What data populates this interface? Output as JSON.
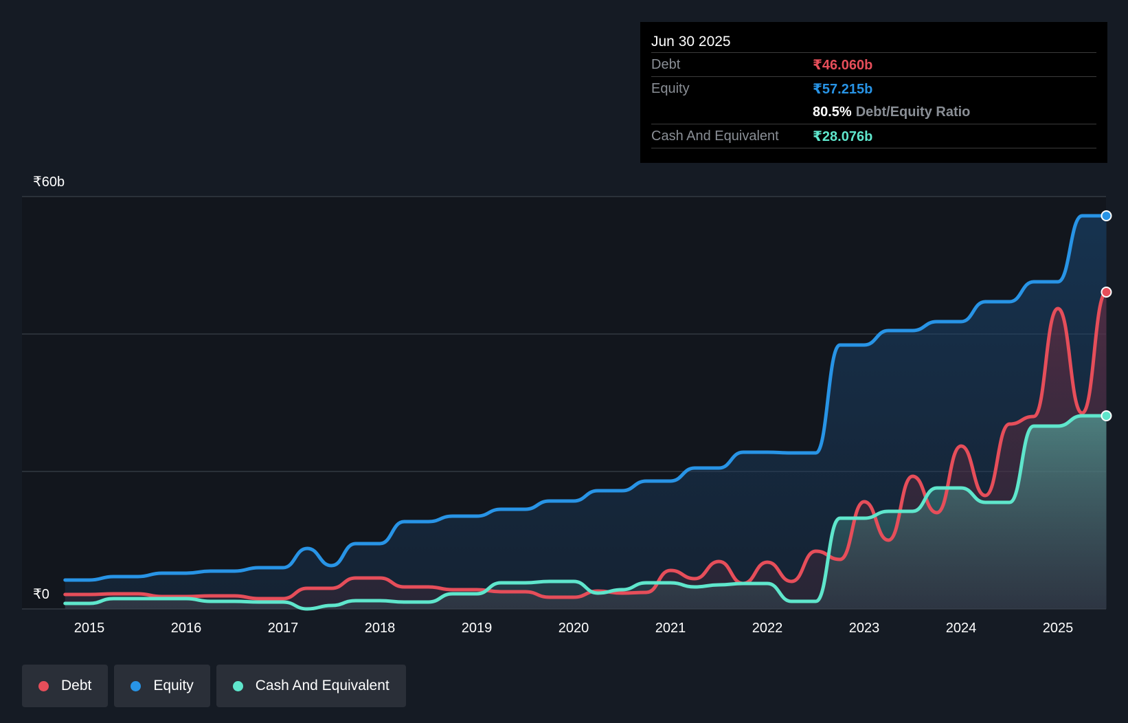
{
  "colors": {
    "debt": "#e64e5a",
    "equity": "#2894e6",
    "cash": "#5fe6cc",
    "grid": "#3a4049",
    "text": "#ffffff",
    "muted": "#8a8f96"
  },
  "tooltip": {
    "date": "Jun 30 2025",
    "debt_label": "Debt",
    "debt_value": "₹46.060b",
    "equity_label": "Equity",
    "equity_value": "₹57.215b",
    "ratio_value": "80.5%",
    "ratio_label": "Debt/Equity Ratio",
    "cash_label": "Cash And Equivalent",
    "cash_value": "₹28.076b"
  },
  "legend": {
    "debt": "Debt",
    "equity": "Equity",
    "cash": "Cash And Equivalent"
  },
  "chart_data": {
    "type": "area",
    "title": "",
    "xlabel": "",
    "ylabel": "",
    "ylim": [
      0,
      60
    ],
    "xlim": [
      2014.5,
      2025.5
    ],
    "y_tick_labels": [
      {
        "value": 60,
        "label": "₹60b"
      },
      {
        "value": 0,
        "label": "₹0"
      }
    ],
    "gridlines": [
      0,
      20,
      40,
      60
    ],
    "x_ticks": [
      {
        "value": 2015,
        "label": "2015"
      },
      {
        "value": 2016,
        "label": "2016"
      },
      {
        "value": 2017,
        "label": "2017"
      },
      {
        "value": 2018,
        "label": "2018"
      },
      {
        "value": 2019,
        "label": "2019"
      },
      {
        "value": 2020,
        "label": "2020"
      },
      {
        "value": 2021,
        "label": "2021"
      },
      {
        "value": 2022,
        "label": "2022"
      },
      {
        "value": 2023,
        "label": "2023"
      },
      {
        "value": 2024,
        "label": "2024"
      },
      {
        "value": 2025,
        "label": "2025"
      }
    ],
    "series": [
      {
        "name": "Equity",
        "key": "equity",
        "points": [
          [
            2014.75,
            4.2
          ],
          [
            2015,
            4.2
          ],
          [
            2015.25,
            4.7
          ],
          [
            2015.5,
            4.7
          ],
          [
            2015.75,
            5.2
          ],
          [
            2016,
            5.2
          ],
          [
            2016.25,
            5.5
          ],
          [
            2016.5,
            5.5
          ],
          [
            2016.75,
            6.0
          ],
          [
            2017,
            6.0
          ],
          [
            2017.25,
            8.8
          ],
          [
            2017.5,
            6.3
          ],
          [
            2017.75,
            9.5
          ],
          [
            2018,
            9.5
          ],
          [
            2018.25,
            12.7
          ],
          [
            2018.5,
            12.7
          ],
          [
            2018.75,
            13.5
          ],
          [
            2019,
            13.5
          ],
          [
            2019.25,
            14.5
          ],
          [
            2019.5,
            14.5
          ],
          [
            2019.75,
            15.7
          ],
          [
            2020,
            15.7
          ],
          [
            2020.25,
            17.2
          ],
          [
            2020.5,
            17.2
          ],
          [
            2020.75,
            18.6
          ],
          [
            2021,
            18.6
          ],
          [
            2021.25,
            20.5
          ],
          [
            2021.5,
            20.5
          ],
          [
            2021.75,
            22.8
          ],
          [
            2022,
            22.8
          ],
          [
            2022.25,
            22.7
          ],
          [
            2022.5,
            22.7
          ],
          [
            2022.75,
            38.4
          ],
          [
            2023,
            38.4
          ],
          [
            2023.25,
            40.5
          ],
          [
            2023.5,
            40.5
          ],
          [
            2023.75,
            41.8
          ],
          [
            2024,
            41.8
          ],
          [
            2024.25,
            44.7
          ],
          [
            2024.5,
            44.7
          ],
          [
            2024.75,
            47.6
          ],
          [
            2025,
            47.6
          ],
          [
            2025.25,
            57.2
          ],
          [
            2025.5,
            57.2
          ]
        ]
      },
      {
        "name": "Debt",
        "key": "debt",
        "points": [
          [
            2014.75,
            2.1
          ],
          [
            2015,
            2.1
          ],
          [
            2015.25,
            2.2
          ],
          [
            2015.5,
            2.2
          ],
          [
            2015.75,
            1.8
          ],
          [
            2016,
            1.8
          ],
          [
            2016.25,
            1.9
          ],
          [
            2016.5,
            1.9
          ],
          [
            2016.75,
            1.5
          ],
          [
            2017,
            1.5
          ],
          [
            2017.25,
            3.0
          ],
          [
            2017.5,
            3.0
          ],
          [
            2017.75,
            4.5
          ],
          [
            2018,
            4.5
          ],
          [
            2018.25,
            3.2
          ],
          [
            2018.5,
            3.2
          ],
          [
            2018.75,
            2.8
          ],
          [
            2019,
            2.8
          ],
          [
            2019.25,
            2.5
          ],
          [
            2019.5,
            2.5
          ],
          [
            2019.75,
            1.7
          ],
          [
            2020,
            1.7
          ],
          [
            2020.25,
            2.6
          ],
          [
            2020.5,
            2.3
          ],
          [
            2020.75,
            2.4
          ],
          [
            2021,
            5.6
          ],
          [
            2021.25,
            4.4
          ],
          [
            2021.5,
            6.9
          ],
          [
            2021.75,
            3.7
          ],
          [
            2022,
            6.8
          ],
          [
            2022.25,
            4.0
          ],
          [
            2022.5,
            8.4
          ],
          [
            2022.75,
            7.2
          ],
          [
            2023,
            15.6
          ],
          [
            2023.25,
            10.0
          ],
          [
            2023.5,
            19.3
          ],
          [
            2023.75,
            14.0
          ],
          [
            2024,
            23.7
          ],
          [
            2024.25,
            16.5
          ],
          [
            2024.5,
            26.9
          ],
          [
            2024.75,
            28.0
          ],
          [
            2025,
            43.7
          ],
          [
            2025.25,
            28.5
          ],
          [
            2025.5,
            46.1
          ]
        ]
      },
      {
        "name": "Cash And Equivalent",
        "key": "cash",
        "points": [
          [
            2014.75,
            0.8
          ],
          [
            2015,
            0.8
          ],
          [
            2015.25,
            1.5
          ],
          [
            2015.5,
            1.5
          ],
          [
            2015.75,
            1.5
          ],
          [
            2016,
            1.5
          ],
          [
            2016.25,
            1.1
          ],
          [
            2016.5,
            1.1
          ],
          [
            2016.75,
            1.0
          ],
          [
            2017,
            1.0
          ],
          [
            2017.25,
            0.0
          ],
          [
            2017.5,
            0.5
          ],
          [
            2017.75,
            1.2
          ],
          [
            2018,
            1.2
          ],
          [
            2018.25,
            1.0
          ],
          [
            2018.5,
            1.0
          ],
          [
            2018.75,
            2.2
          ],
          [
            2019,
            2.2
          ],
          [
            2019.25,
            3.8
          ],
          [
            2019.5,
            3.8
          ],
          [
            2019.75,
            4.0
          ],
          [
            2020,
            4.0
          ],
          [
            2020.25,
            2.3
          ],
          [
            2020.5,
            2.8
          ],
          [
            2020.75,
            3.8
          ],
          [
            2021,
            3.8
          ],
          [
            2021.25,
            3.2
          ],
          [
            2021.5,
            3.5
          ],
          [
            2021.75,
            3.7
          ],
          [
            2022,
            3.7
          ],
          [
            2022.25,
            1.1
          ],
          [
            2022.5,
            1.1
          ],
          [
            2022.75,
            13.2
          ],
          [
            2023,
            13.2
          ],
          [
            2023.25,
            14.2
          ],
          [
            2023.5,
            14.2
          ],
          [
            2023.75,
            17.6
          ],
          [
            2024,
            17.6
          ],
          [
            2024.25,
            15.5
          ],
          [
            2024.5,
            15.5
          ],
          [
            2024.75,
            26.6
          ],
          [
            2025,
            26.6
          ],
          [
            2025.25,
            28.1
          ],
          [
            2025.5,
            28.1
          ]
        ]
      }
    ]
  }
}
